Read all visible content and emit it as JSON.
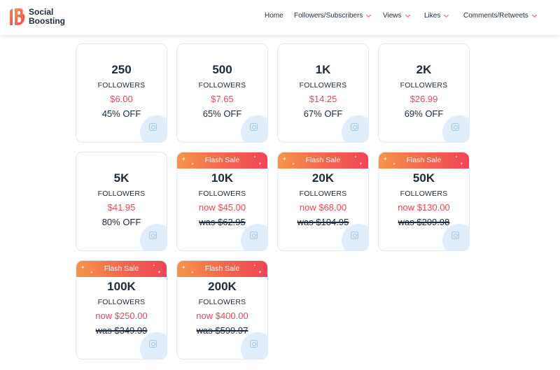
{
  "brand": {
    "line1": "Social",
    "line2": "Boosting",
    "accent": "#ef4d5c",
    "gradient_start": "#f7934c"
  },
  "nav": [
    {
      "label": "Home",
      "dropdown": false
    },
    {
      "label": "Followers/Subscribers",
      "dropdown": true
    },
    {
      "label": "Views",
      "dropdown": true
    },
    {
      "label": "Likes",
      "dropdown": true
    },
    {
      "label": "Comments/Retweets",
      "dropdown": true
    }
  ],
  "flash_label": "Flash Sale",
  "packages": [
    {
      "qty": "250",
      "unit": "FOLLOWERS",
      "price": "$6.00",
      "sub": "45% OFF",
      "flash": false
    },
    {
      "qty": "500",
      "unit": "FOLLOWERS",
      "price": "$7.65",
      "sub": "65% OFF",
      "flash": false
    },
    {
      "qty": "1K",
      "unit": "FOLLOWERS",
      "price": "$14.25",
      "sub": "67% OFF",
      "flash": false
    },
    {
      "qty": "2K",
      "unit": "FOLLOWERS",
      "price": "$26.99",
      "sub": "69% OFF",
      "flash": false
    },
    {
      "qty": "5K",
      "unit": "FOLLOWERS",
      "price": "$41.95",
      "sub": "80% OFF",
      "flash": false
    },
    {
      "qty": "10K",
      "unit": "FOLLOWERS",
      "price": "now $45.00",
      "sub": "was $62.95",
      "flash": true
    },
    {
      "qty": "20K",
      "unit": "FOLLOWERS",
      "price": "now $68.00",
      "sub": "was $104.95",
      "flash": true
    },
    {
      "qty": "50K",
      "unit": "FOLLOWERS",
      "price": "now $130.00",
      "sub": "was $209.98",
      "flash": true
    },
    {
      "qty": "100K",
      "unit": "FOLLOWERS",
      "price": "now $250.00",
      "sub": "was $349.99",
      "flash": true
    },
    {
      "qty": "200K",
      "unit": "FOLLOWERS",
      "price": "now $400.00",
      "sub": "was $599.97",
      "flash": true
    }
  ],
  "card_icon": "instagram-icon"
}
